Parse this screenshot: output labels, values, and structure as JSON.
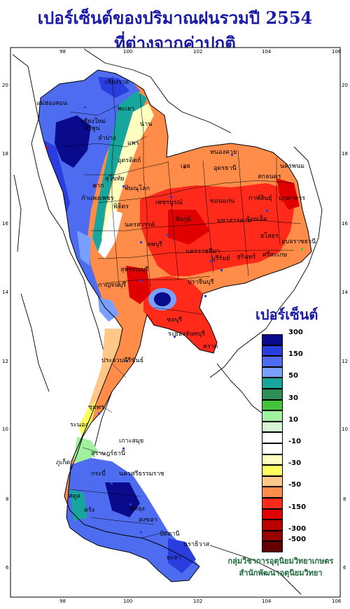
{
  "title_line1": "เปอร์เซ็นต์ของปริมาณฝนรวมปี 2554",
  "title_line2": "ที่ต่างจากค่าปกติ",
  "lon_ticks": [
    "98",
    "100",
    "102",
    "104",
    "106"
  ],
  "lat_ticks": [
    "20",
    "18",
    "16",
    "14",
    "12",
    "10",
    "8",
    "6"
  ],
  "legend": {
    "title": "เปอร์เซ็นต์",
    "entries": [
      {
        "label": "300",
        "color": "#0a0a8c"
      },
      {
        "label": "",
        "color": "#2a3ee0"
      },
      {
        "label": "150",
        "color": "#4e6cf0"
      },
      {
        "label": "",
        "color": "#7aa0ff"
      },
      {
        "label": "50",
        "color": "#17a59c"
      },
      {
        "label": "",
        "color": "#2e8c55"
      },
      {
        "label": "30",
        "color": "#44c43c"
      },
      {
        "label": "",
        "color": "#a0f0a0"
      },
      {
        "label": "10",
        "color": "#d6f6d6"
      },
      {
        "label": "",
        "color": "#ffffff"
      },
      {
        "label": "-10",
        "color": "#ffffff"
      },
      {
        "label": "",
        "color": "#ffffc0"
      },
      {
        "label": "-30",
        "color": "#ffff60"
      },
      {
        "label": "",
        "color": "#ffc888"
      },
      {
        "label": "-50",
        "color": "#ff8c48"
      },
      {
        "label": "",
        "color": "#ff2a1a"
      },
      {
        "label": "-150",
        "color": "#e00000"
      },
      {
        "label": "",
        "color": "#bb0000"
      },
      {
        "label": "-300",
        "color": "#950000"
      },
      {
        "label": "-500",
        "color": "#640000"
      }
    ]
  },
  "cities": [
    "แม่ฮ่องสอน",
    "เชียงราย",
    "พะเยา",
    "เชียงใหม่",
    "ลำพูน",
    "ลำปาง",
    "น่าน",
    "แพร่",
    "อุตรดิตถ์",
    "ตาก",
    "สุโขทัย",
    "พิษณุโลก",
    "เพชรบูรณ์",
    "กำแพงเพชร",
    "พิจิตร",
    "หนองคาย",
    "อุดรธานี",
    "สกลนคร",
    "นครพนม",
    "เลย",
    "ขอนแก่น",
    "กาฬสินธุ์",
    "มุกดาหาร",
    "ชัยภูมิ",
    "มหาสารคาม",
    "ร้อยเอ็ด",
    "ยโสธร",
    "อุบลราชธานี",
    "นครสวรรค์",
    "ลพบุรี",
    "นครราชสีมา",
    "บุรีรัมย์",
    "สุรินทร์",
    "ศรีสะเกษ",
    "กาญจนบุรี",
    "สุพรรณบุรี",
    "ปราจีนบุรี",
    "ชลบุรี",
    "ระยอง",
    "จันทบุรี",
    "ตราด",
    "ประจวบคีรีขันธ์",
    "ชุมพร",
    "ระนอง",
    "สุราษฎร์ธานี",
    "นครศรีธรรมราช",
    "ภูเก็ต",
    "กระบี่",
    "ตรัง",
    "พัทลุง",
    "สงขลา",
    "สตูล",
    "ปัตตานี",
    "นราธิวาส",
    "เกาะสมุย",
    "ยะลา"
  ],
  "credit_line1": "กลุ่มวิชาการอุตุนิยมวิทยาเกษตร",
  "credit_line2": "สำนักพัฒนาอุตุนิยมวิทยา"
}
